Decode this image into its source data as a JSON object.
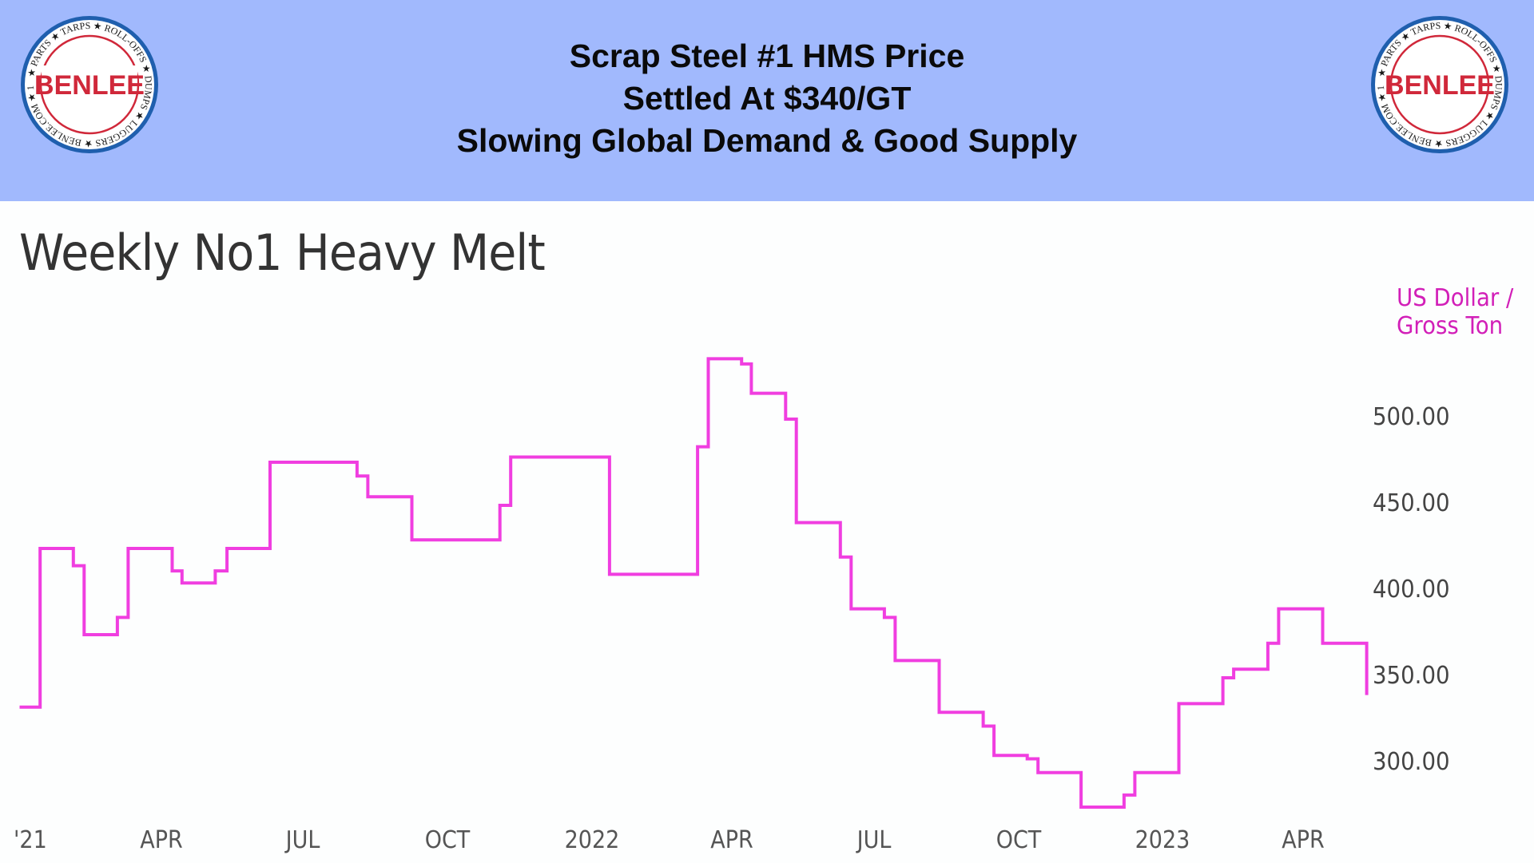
{
  "banner": {
    "lines": [
      "Scrap Steel #1 HMS Price",
      "Settled At $340/GT",
      "Slowing Global Demand & Good Supply"
    ],
    "background": "#a1b9fd",
    "logo": {
      "name": "BENLEE",
      "ring_text_top": "TARPS ★ ROLL-OFFS ★ DUMPS ★ LUGGERS",
      "ring_text_bottom": "PARTS ★ 1-734-722-8100 ★ BENLEE.COM"
    }
  },
  "chart": {
    "title": "Weekly No1 Heavy Melt",
    "unit_line1": "US Dollar /",
    "unit_line2": "Gross Ton",
    "y_ticks": [
      "500.00",
      "450.00",
      "400.00",
      "350.00",
      "300.00"
    ],
    "x_ticks": [
      "2021",
      "APR",
      "JUL",
      "OCT",
      "2022",
      "APR",
      "JUL",
      "OCT",
      "2023",
      "APR"
    ],
    "x_ticks_visible_text": [
      "'21",
      "APR",
      "JUL",
      "OCT",
      "2022",
      "APR",
      "JUL",
      "OCT",
      "2023",
      "APR"
    ],
    "line_color": "#f03ee0"
  },
  "chart_data": {
    "type": "line",
    "title": "Weekly No1 Heavy Melt",
    "xlabel": "",
    "ylabel": "US Dollar / Gross Ton",
    "ylim": [
      265,
      545
    ],
    "y_ticks": [
      300,
      350,
      400,
      450,
      500
    ],
    "x_tick_labels": [
      "2021",
      "APR",
      "JUL",
      "OCT",
      "2022",
      "APR",
      "JUL",
      "OCT",
      "2023",
      "APR"
    ],
    "grid": false,
    "legend": null,
    "step": true,
    "series": [
      {
        "name": "No1 Heavy Melt",
        "x_approx": [
          "2020-12-22",
          "2021-01-01",
          "2021-02-01",
          "2021-02-08",
          "2021-03-01",
          "2021-03-08",
          "2021-04-01",
          "2021-04-08",
          "2021-05-01",
          "2021-05-08",
          "2021-06-01",
          "2021-08-01",
          "2021-08-08",
          "2021-09-01",
          "2021-11-01",
          "2021-11-08",
          "2021-12-01",
          "2022-03-01",
          "2022-03-08",
          "2022-04-01",
          "2022-04-23",
          "2022-05-01",
          "2022-05-23",
          "2022-06-01",
          "2022-06-23",
          "2022-07-01",
          "2022-07-23",
          "2022-08-01",
          "2022-09-01",
          "2022-10-01",
          "2022-10-08",
          "2022-11-01",
          "2022-11-08",
          "2022-12-01",
          "2022-12-31",
          "2023-01-08",
          "2023-02-01",
          "2023-03-01",
          "2023-03-08",
          "2023-04-01",
          "2023-04-08",
          "2023-05-01",
          "2023-06-01",
          "2023-06-01"
        ],
        "values": [
          333,
          425,
          415,
          375,
          385,
          425,
          412,
          405,
          412,
          425,
          475,
          467,
          455,
          430,
          450,
          478,
          410,
          484,
          535,
          532,
          515,
          500,
          440,
          420,
          390,
          385,
          360,
          330,
          322,
          305,
          303,
          295,
          275,
          282,
          295,
          335,
          350,
          355,
          370,
          390,
          390,
          370,
          370,
          340
        ]
      }
    ]
  }
}
